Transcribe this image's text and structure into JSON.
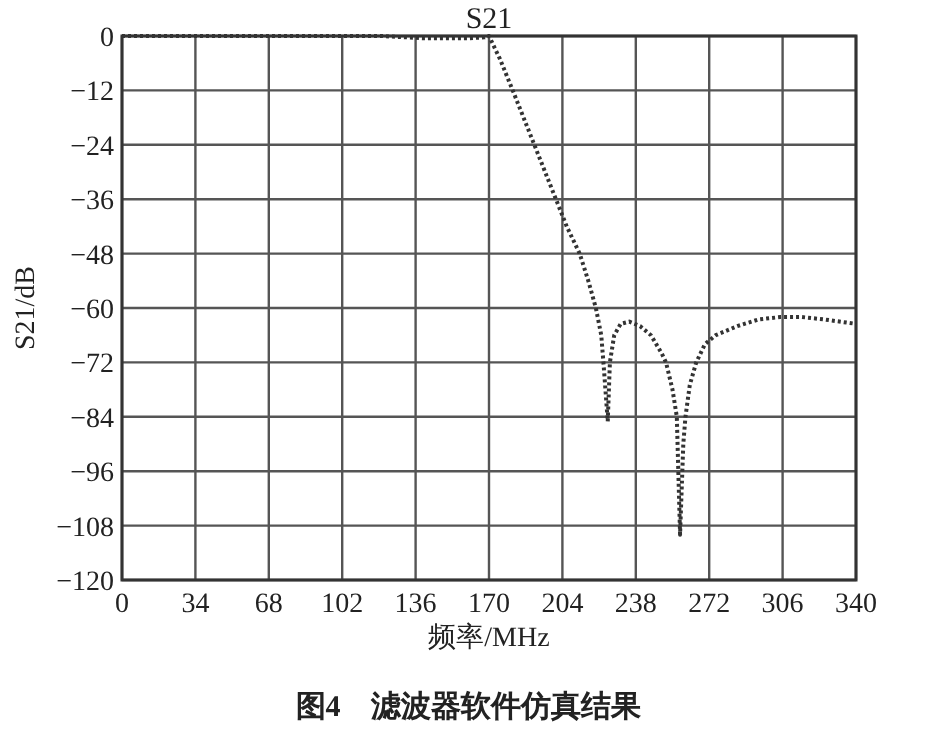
{
  "chart_data": {
    "type": "line",
    "title": "S21",
    "xlabel": "频率/MHz",
    "ylabel": "S21/dB",
    "annotations": [
      "图4　滤波器软件仿真结果"
    ],
    "x": [
      0,
      20,
      40,
      60,
      80,
      100,
      120,
      140,
      150,
      160,
      168,
      170,
      175,
      181,
      186,
      191,
      196,
      201,
      206,
      212,
      216,
      219.5,
      222,
      223,
      225,
      226,
      228,
      231,
      235,
      240,
      245,
      250,
      252,
      255,
      257,
      258.5,
      260,
      261,
      263,
      266,
      270,
      275,
      285,
      295,
      305,
      315,
      325,
      340
    ],
    "values": [
      0,
      0,
      0,
      0,
      0,
      0,
      0,
      -0.5,
      -0.5,
      -0.5,
      -0.3,
      0,
      -5,
      -12,
      -18,
      -24,
      -30,
      -36,
      -42,
      -48,
      -54,
      -60,
      -66,
      -72,
      -85,
      -72,
      -66,
      -63.5,
      -63,
      -64,
      -66,
      -70,
      -72,
      -78,
      -84,
      -110,
      -90,
      -84,
      -77,
      -72,
      -68,
      -66,
      -64,
      -62.5,
      -62,
      -62,
      -62.5,
      -63.5
    ],
    "color": "#333333",
    "line_style": "dotted",
    "xlim": [
      0,
      340
    ],
    "ylim": [
      -120,
      0
    ],
    "xticks": [
      0,
      34,
      68,
      102,
      136,
      170,
      204,
      238,
      272,
      306,
      340
    ],
    "yticks": [
      -120,
      -108,
      -96,
      -84,
      -72,
      -60,
      -48,
      -36,
      -24,
      -12,
      0
    ],
    "grid": true
  }
}
